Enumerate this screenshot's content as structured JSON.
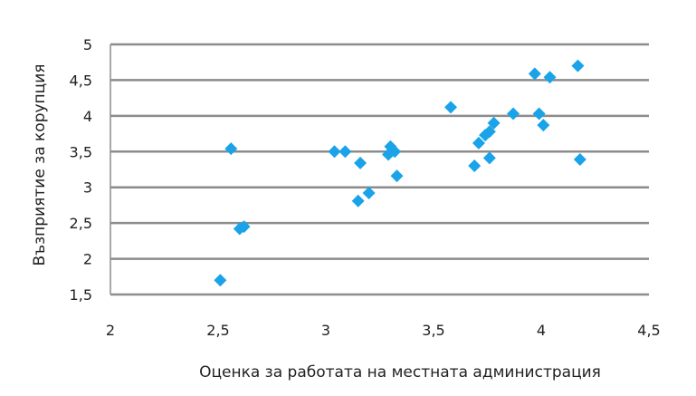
{
  "chart_data": {
    "type": "scatter",
    "title": "",
    "xlabel": "Оценка за работата  на местната  администрация",
    "ylabel": "Възприятие за корупция",
    "xlim": [
      2,
      4.5
    ],
    "ylim": [
      1.5,
      5
    ],
    "x_ticks": [
      2,
      2.5,
      3,
      3.5,
      4,
      4.5
    ],
    "y_ticks": [
      1.5,
      2,
      2.5,
      3,
      3.5,
      4,
      4.5,
      5
    ],
    "x_tick_labels": [
      "2",
      "2,5",
      "3",
      "3,5",
      "4",
      "4,5"
    ],
    "y_tick_labels": [
      "1,5",
      "2",
      "2,5",
      "3",
      "3,5",
      "4",
      "4,5",
      "5"
    ],
    "grid": "horizontal",
    "legend": "none",
    "marker": "diamond",
    "colors": {
      "marker": "#1aa3e8",
      "grid": "#8c8c8c",
      "text": "#222222"
    },
    "points": [
      {
        "x": 2.51,
        "y": 1.7
      },
      {
        "x": 2.56,
        "y": 3.54
      },
      {
        "x": 2.6,
        "y": 2.42
      },
      {
        "x": 2.62,
        "y": 2.45
      },
      {
        "x": 3.04,
        "y": 3.5
      },
      {
        "x": 3.09,
        "y": 3.5
      },
      {
        "x": 3.15,
        "y": 2.81
      },
      {
        "x": 3.16,
        "y": 3.34
      },
      {
        "x": 3.2,
        "y": 2.92
      },
      {
        "x": 3.29,
        "y": 3.46
      },
      {
        "x": 3.3,
        "y": 3.57
      },
      {
        "x": 3.32,
        "y": 3.5
      },
      {
        "x": 3.33,
        "y": 3.16
      },
      {
        "x": 3.58,
        "y": 4.12
      },
      {
        "x": 3.69,
        "y": 3.3
      },
      {
        "x": 3.71,
        "y": 3.62
      },
      {
        "x": 3.74,
        "y": 3.73
      },
      {
        "x": 3.76,
        "y": 3.78
      },
      {
        "x": 3.76,
        "y": 3.41
      },
      {
        "x": 3.78,
        "y": 3.9
      },
      {
        "x": 3.87,
        "y": 4.03
      },
      {
        "x": 3.97,
        "y": 4.59
      },
      {
        "x": 3.99,
        "y": 4.03
      },
      {
        "x": 4.01,
        "y": 3.87
      },
      {
        "x": 4.04,
        "y": 4.54
      },
      {
        "x": 4.17,
        "y": 4.7
      },
      {
        "x": 4.18,
        "y": 3.39
      }
    ]
  }
}
